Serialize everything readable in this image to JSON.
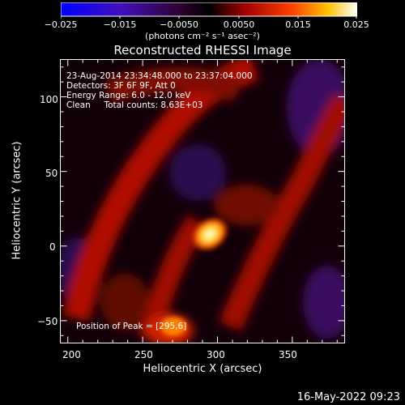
{
  "colorbar": {
    "ticks": [
      "−0.025",
      "−0.015",
      "−0.0050",
      "0.0050",
      "0.015",
      "0.025"
    ],
    "unit_label": "(photons cm⁻² s⁻¹ asec⁻²)"
  },
  "chart_data": {
    "type": "heatmap",
    "title": "Reconstructed RHESSI Image",
    "xlabel": "Heliocentric X (arcsec)",
    "ylabel": "Heliocentric Y (arcsec)",
    "xlim": [
      195,
      385
    ],
    "ylim": [
      -65,
      125
    ],
    "x_ticks": [
      "200",
      "250",
      "300",
      "350"
    ],
    "y_ticks": [
      "100",
      "50",
      "0",
      "−50"
    ],
    "colormap": [
      "#0000ff",
      "#5000a0",
      "#000000",
      "#a00000",
      "#ff4000",
      "#ffd000",
      "#ffffff"
    ],
    "color_range": [
      -0.025,
      0.025
    ],
    "peak": {
      "x": 295,
      "y": 6
    }
  },
  "info": {
    "line1": "23-Aug-2014 23:34:48.000 to 23:37:04.000",
    "line2": "Detectors: 3F 6F 9F, Att 0",
    "line3": "Energy Range: 6.0 - 12.0 keV",
    "line4": "Clean     Total counts: 8.63E+03",
    "peak_label": "Position of Peak = [295,6]"
  },
  "timestamp": "16-May-2022 09:23"
}
